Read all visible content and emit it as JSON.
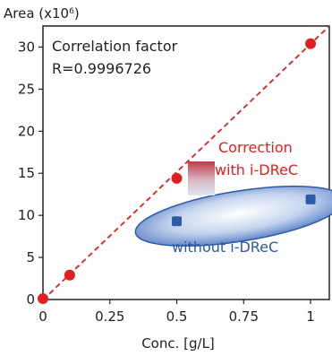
{
  "chart_data": {
    "type": "scatter",
    "ylabel_prefix": "Area (x10",
    "ylabel_exp": "6",
    "ylabel_suffix": ")",
    "xlabel": "Conc. [g/L]",
    "xlim": [
      0,
      1.07
    ],
    "ylim": [
      0,
      32.5
    ],
    "xticks": [
      0,
      0.25,
      0.5,
      0.75,
      1
    ],
    "xtick_labels": [
      "0",
      "0.25",
      "0.5",
      "0.75",
      "1"
    ],
    "yticks": [
      0,
      5,
      10,
      15,
      20,
      25,
      30
    ],
    "ytick_labels": [
      "0",
      "5",
      "10",
      "15",
      "20",
      "25",
      "30"
    ],
    "grid": false,
    "annotation_correlation_line1": "Correlation factor",
    "annotation_correlation_line2": "R=0.9996726",
    "series": [
      {
        "label": "Correction with i-DReC",
        "label_line1": "Correction",
        "label_line2": "with  i-DReC",
        "color": "#e02020",
        "x": [
          0,
          0.1,
          0.5,
          1.0
        ],
        "y": [
          0.1,
          2.9,
          14.4,
          30.4
        ]
      },
      {
        "label": "without i-DReC",
        "color": "#2e5aa8",
        "x": [
          0.5,
          1.0
        ],
        "y": [
          9.3,
          11.9
        ]
      }
    ],
    "fit_line": {
      "x": [
        0,
        1.07
      ],
      "y": [
        -0.05,
        32.5
      ],
      "color": "#e02020",
      "style": "dashed"
    }
  }
}
